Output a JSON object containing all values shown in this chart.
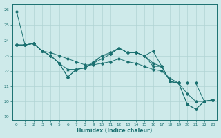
{
  "xlabel": "Humidex (Indice chaleur)",
  "ylabel": "",
  "background_color": "#ceeaea",
  "grid_color": "#b0d4d4",
  "line_color": "#1a7070",
  "xlim": [
    -0.5,
    23.5
  ],
  "ylim": [
    18.8,
    26.4
  ],
  "yticks": [
    19,
    20,
    21,
    22,
    23,
    24,
    25,
    26
  ],
  "xticks": [
    0,
    1,
    2,
    3,
    4,
    5,
    6,
    7,
    8,
    9,
    10,
    11,
    12,
    13,
    14,
    15,
    16,
    17,
    18,
    19,
    20,
    21,
    22,
    23
  ],
  "series": [
    [
      25.9,
      23.7,
      23.8,
      23.3,
      23.0,
      22.5,
      21.6,
      22.1,
      22.2,
      22.5,
      23.0,
      23.1,
      23.5,
      23.2,
      23.2,
      23.0,
      23.3,
      22.3,
      21.3,
      21.2,
      19.8,
      19.5,
      20.0,
      20.1
    ],
    [
      23.7,
      23.7,
      23.8,
      23.3,
      23.2,
      23.0,
      22.8,
      22.6,
      22.4,
      22.4,
      22.5,
      22.6,
      22.8,
      22.6,
      22.5,
      22.3,
      22.1,
      22.0,
      21.5,
      21.2,
      20.5,
      20.0,
      20.0,
      20.1
    ],
    [
      23.7,
      23.7,
      23.8,
      23.3,
      23.0,
      22.5,
      22.1,
      22.1,
      22.2,
      22.6,
      23.0,
      23.2,
      23.5,
      23.2,
      23.2,
      23.0,
      22.5,
      22.3,
      21.3,
      21.2,
      21.2,
      21.2,
      20.0,
      20.1
    ],
    [
      23.7,
      23.7,
      23.8,
      23.3,
      23.0,
      22.5,
      21.6,
      22.1,
      22.2,
      22.5,
      22.8,
      23.1,
      23.5,
      23.2,
      23.2,
      23.0,
      22.3,
      22.3,
      21.3,
      21.2,
      19.8,
      19.5,
      20.0,
      20.1
    ]
  ],
  "straight_lines": [
    {
      "x0": 1,
      "y0": 23.7,
      "x1": 23,
      "y1": 20.1
    },
    {
      "x0": 1,
      "y0": 23.7,
      "x1": 23,
      "y1": 20.1
    }
  ]
}
